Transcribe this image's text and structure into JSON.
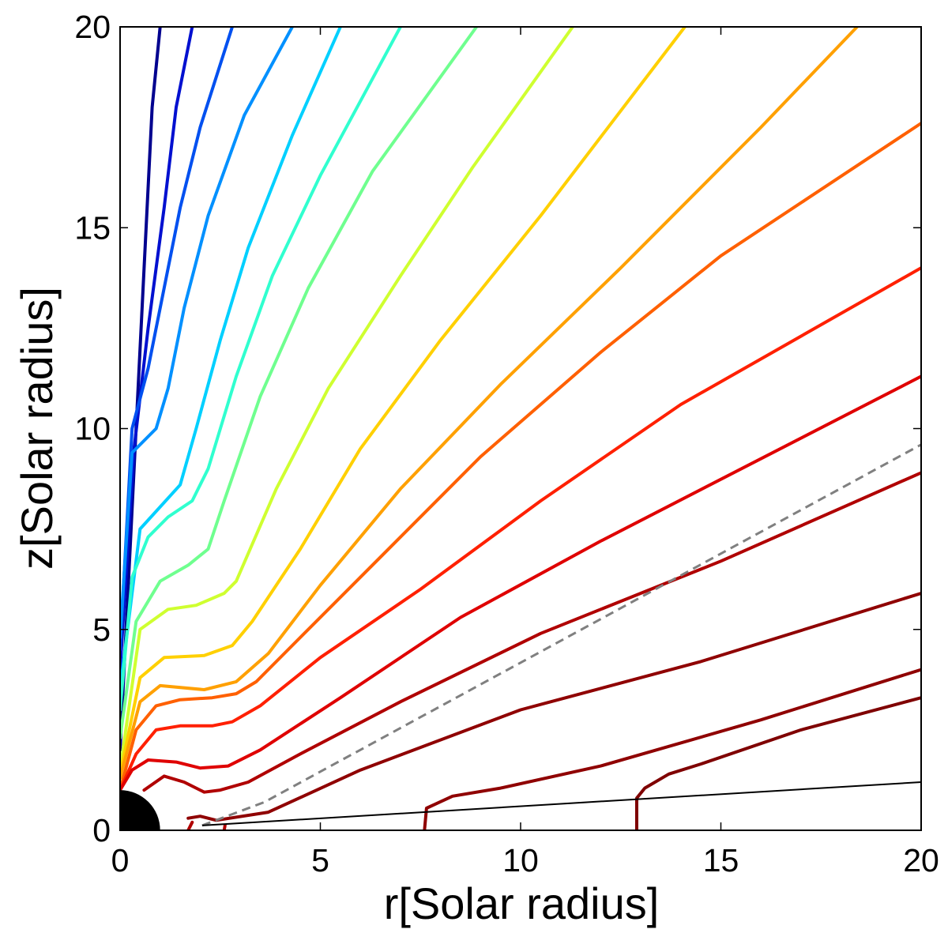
{
  "chart_data": {
    "type": "line",
    "title": "",
    "xlabel": "r[Solar radius]",
    "ylabel": "z[Solar radius]",
    "xlim": [
      0,
      20
    ],
    "ylim": [
      0,
      20
    ],
    "xticks": [
      0,
      5,
      10,
      15,
      20
    ],
    "yticks": [
      0,
      5,
      10,
      15,
      20
    ],
    "xtick_labels": [
      "0",
      "5",
      "10",
      "15",
      "20"
    ],
    "ytick_labels": [
      "0",
      "5",
      "10",
      "15",
      "20"
    ],
    "grid": false,
    "legend": "none",
    "solar_disk": {
      "center": [
        0,
        0
      ],
      "radius": 1.0,
      "color": "#000000"
    },
    "reference_line": {
      "x": [
        2.05,
        20.0
      ],
      "y": [
        0.12,
        1.2
      ],
      "color": "#000000",
      "style": "solid"
    },
    "dashed_line": {
      "x": [
        2.05,
        3.6,
        20.0
      ],
      "y": [
        0.12,
        0.7,
        9.6
      ],
      "color": "#808080",
      "style": "dashed"
    },
    "field_lines": [
      {
        "color": "#00008f",
        "x": [
          0.0,
          0.3,
          0.6,
          0.8,
          1.0
        ],
        "y": [
          2.0,
          8.0,
          14.0,
          18.0,
          20.0
        ]
      },
      {
        "color": "#0010d0",
        "x": [
          0.0,
          0.35,
          0.7,
          1.1,
          1.4,
          1.8
        ],
        "y": [
          4.0,
          9.5,
          12.5,
          15.5,
          18.0,
          20.0
        ]
      },
      {
        "color": "#0050f0",
        "x": [
          0.0,
          0.3,
          0.7,
          1.1,
          1.5,
          2.0,
          2.8
        ],
        "y": [
          4.5,
          10.0,
          11.5,
          13.5,
          15.5,
          17.5,
          20.0
        ]
      },
      {
        "color": "#0090ff",
        "x": [
          0.0,
          0.3,
          0.9,
          1.2,
          1.6,
          2.2,
          3.1,
          4.3
        ],
        "y": [
          4.8,
          9.4,
          10.0,
          11.0,
          13.0,
          15.3,
          17.8,
          20.0
        ]
      },
      {
        "color": "#00d0ff",
        "x": [
          0.0,
          0.5,
          1.5,
          1.9,
          2.5,
          3.2,
          4.3,
          5.5
        ],
        "y": [
          3.5,
          7.5,
          8.6,
          10.0,
          12.2,
          14.5,
          17.3,
          20.0
        ]
      },
      {
        "color": "#30ffcf",
        "x": [
          0.0,
          0.3,
          0.7,
          1.2,
          1.8,
          2.2,
          2.9,
          3.8,
          5.0,
          7.0
        ],
        "y": [
          3.0,
          6.3,
          7.3,
          7.8,
          8.2,
          9.0,
          11.3,
          13.8,
          16.3,
          20.0
        ]
      },
      {
        "color": "#6fff8f",
        "x": [
          0.0,
          0.4,
          1.0,
          1.7,
          2.2,
          2.6,
          3.5,
          4.7,
          6.3,
          8.9
        ],
        "y": [
          2.3,
          5.2,
          6.2,
          6.6,
          7.0,
          8.2,
          10.8,
          13.5,
          16.4,
          20.0
        ]
      },
      {
        "color": "#cfff30",
        "x": [
          0.0,
          0.5,
          1.2,
          1.9,
          2.6,
          2.9,
          3.9,
          5.2,
          7.0,
          8.8,
          11.3
        ],
        "y": [
          1.5,
          5.0,
          5.5,
          5.6,
          5.9,
          6.2,
          8.5,
          11.0,
          13.8,
          16.5,
          20.0
        ]
      },
      {
        "color": "#ffd000",
        "x": [
          0.0,
          0.5,
          1.1,
          2.1,
          2.8,
          3.3,
          4.5,
          6.0,
          8.0,
          10.5,
          14.1
        ],
        "y": [
          1.4,
          3.8,
          4.3,
          4.35,
          4.6,
          5.2,
          7.0,
          9.5,
          12.2,
          15.3,
          20.0
        ]
      },
      {
        "color": "#ffa000",
        "x": [
          0.0,
          0.5,
          1.0,
          2.1,
          2.9,
          3.7,
          5.0,
          7.0,
          9.5,
          12.5,
          16.0,
          18.4
        ],
        "y": [
          1.3,
          3.2,
          3.6,
          3.5,
          3.7,
          4.4,
          6.1,
          8.5,
          11.1,
          14.0,
          17.5,
          20.0
        ]
      },
      {
        "color": "#ff6000",
        "x": [
          0.0,
          0.4,
          0.9,
          1.5,
          2.3,
          2.9,
          3.4,
          4.5,
          6.5,
          9.0,
          12.0,
          15.0,
          20.0
        ],
        "y": [
          1.0,
          2.5,
          3.1,
          3.25,
          3.3,
          3.4,
          3.7,
          4.8,
          6.8,
          9.3,
          11.9,
          14.3,
          17.6
        ]
      },
      {
        "color": "#ff2000",
        "x": [
          0.0,
          0.4,
          0.9,
          1.5,
          2.3,
          2.8,
          3.5,
          5.0,
          7.5,
          10.5,
          14.0,
          20.0
        ],
        "y": [
          1.0,
          1.9,
          2.5,
          2.6,
          2.6,
          2.7,
          3.1,
          4.3,
          6.0,
          8.2,
          10.6,
          14.0
        ]
      },
      {
        "color": "#df0000",
        "x": [
          0.0,
          0.3,
          0.7,
          1.4,
          2.0,
          2.7,
          3.5,
          5.5,
          8.5,
          12.0,
          20.0
        ],
        "y": [
          1.0,
          1.5,
          1.75,
          1.7,
          1.55,
          1.6,
          2.0,
          3.3,
          5.3,
          7.2,
          11.3
        ]
      },
      {
        "color": "#b00000",
        "x": [
          0.6,
          1.1,
          1.6,
          2.1,
          2.5,
          3.2,
          4.5,
          7.0,
          10.5,
          15.0,
          20.0
        ],
        "y": [
          1.0,
          1.35,
          1.2,
          0.95,
          1.0,
          1.2,
          1.9,
          3.2,
          4.9,
          6.7,
          8.9
        ]
      },
      {
        "color": "#8f0000",
        "x": [
          1.7,
          2.0,
          2.4,
          3.7,
          6.0,
          10.0,
          14.5,
          20.0
        ],
        "y": [
          0.3,
          0.35,
          0.25,
          0.45,
          1.5,
          3.0,
          4.2,
          5.9
        ]
      },
      {
        "color": "#8f0000",
        "x": [
          7.6,
          7.65,
          8.3,
          9.5,
          12.0,
          16.0,
          20.0
        ],
        "y": [
          0.0,
          0.55,
          0.85,
          1.05,
          1.6,
          2.75,
          4.0
        ]
      },
      {
        "color": "#7f0000",
        "x": [
          12.9,
          12.9,
          13.1,
          13.7,
          14.5,
          17.0,
          20.0
        ],
        "y": [
          0.0,
          0.8,
          1.05,
          1.4,
          1.65,
          2.5,
          3.3
        ]
      },
      {
        "color": "#b00000",
        "x": [
          1.7,
          1.8
        ],
        "y": [
          0.0,
          0.2
        ]
      },
      {
        "color": "#b00000",
        "x": [
          2.6,
          2.62
        ],
        "y": [
          0.0,
          0.12
        ]
      }
    ]
  }
}
